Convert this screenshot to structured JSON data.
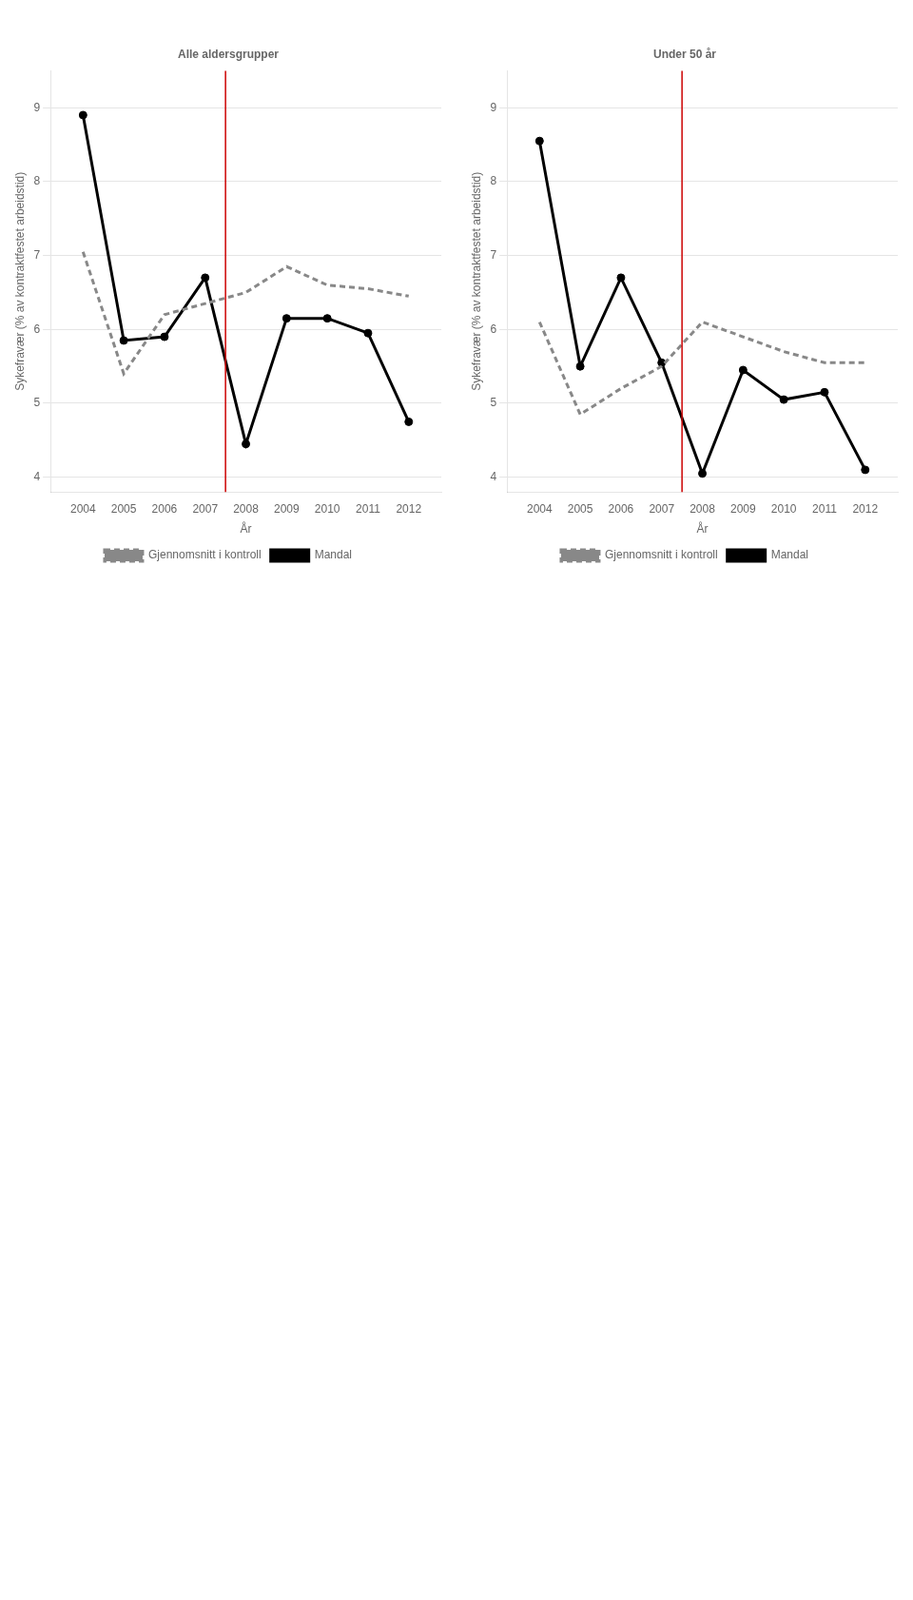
{
  "chart_data": [
    {
      "type": "line",
      "title": "Alle aldersgrupper",
      "xlabel": "År",
      "ylabel": "Sykefravær (% av kontraktfestet arbeidstid)",
      "x": [
        2004,
        2005,
        2006,
        2007,
        2008,
        2009,
        2010,
        2011,
        2012
      ],
      "series": [
        {
          "name": "Gjennomsnitt i kontroll",
          "color": "#888888",
          "line_style": "dashed",
          "marker": "none",
          "values": [
            7.05,
            5.4,
            6.2,
            6.35,
            6.5,
            6.85,
            6.6,
            6.55,
            6.45
          ]
        },
        {
          "name": "Mandal",
          "color": "#000000",
          "line_style": "solid",
          "marker": "circle",
          "values": [
            8.9,
            5.85,
            5.9,
            6.7,
            4.45,
            6.15,
            6.15,
            5.95,
            4.75
          ]
        }
      ],
      "xlim": [
        2003.2,
        2012.8
      ],
      "xticks": [
        2004,
        2005,
        2006,
        2007,
        2008,
        2009,
        2010,
        2011,
        2012
      ],
      "ylim": [
        3.8,
        9.5
      ],
      "yticks": [
        4,
        5,
        6,
        7,
        8,
        9
      ],
      "grid": "y",
      "legend": "bottom",
      "vlines": [
        {
          "x": 2007.5,
          "color": "#cc0000"
        }
      ]
    },
    {
      "type": "line",
      "title": "Under 50 år",
      "xlabel": "År",
      "ylabel": "Sykefravær (% av kontraktfestet arbeidstid)",
      "x": [
        2004,
        2005,
        2006,
        2007,
        2008,
        2009,
        2010,
        2011,
        2012
      ],
      "series": [
        {
          "name": "Gjennomsnitt i kontroll",
          "color": "#888888",
          "line_style": "dashed",
          "marker": "none",
          "values": [
            6.1,
            4.85,
            5.2,
            5.5,
            6.1,
            5.9,
            5.7,
            5.55,
            5.55
          ]
        },
        {
          "name": "Mandal",
          "color": "#000000",
          "line_style": "solid",
          "marker": "circle",
          "values": [
            8.55,
            5.5,
            6.7,
            5.55,
            4.05,
            5.45,
            5.05,
            5.15,
            4.1
          ]
        }
      ],
      "xlim": [
        2003.2,
        2012.8
      ],
      "xticks": [
        2004,
        2005,
        2006,
        2007,
        2008,
        2009,
        2010,
        2011,
        2012
      ],
      "ylim": [
        3.8,
        9.5
      ],
      "yticks": [
        4,
        5,
        6,
        7,
        8,
        9
      ],
      "grid": "y",
      "legend": "bottom",
      "vlines": [
        {
          "x": 2007.5,
          "color": "#cc0000"
        }
      ]
    }
  ]
}
